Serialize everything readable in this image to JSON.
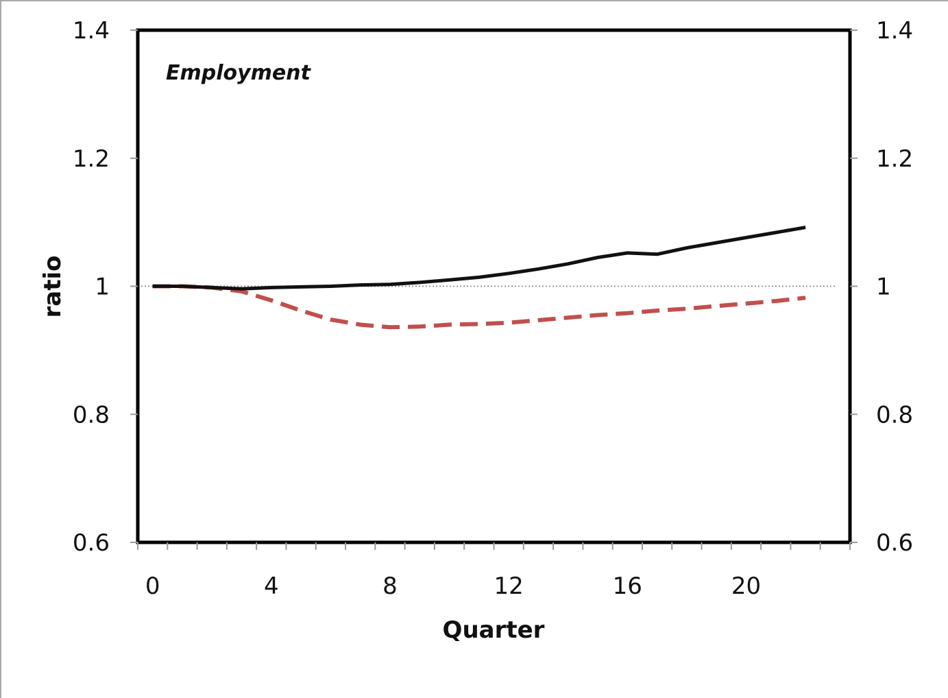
{
  "chart_data": {
    "type": "line",
    "annotation": "Employment",
    "xlabel": "Quarter",
    "ylabel": "ratio",
    "xlim": [
      -0.5,
      23.5
    ],
    "ylim": [
      0.6,
      1.4
    ],
    "x_ticks": [
      0,
      4,
      8,
      12,
      16,
      20
    ],
    "y_ticks": [
      0.6,
      0.8,
      1,
      1.2,
      1.4
    ],
    "y_tick_labels": [
      "0.6",
      "0.8",
      "1",
      "1.2",
      "1.4"
    ],
    "right_axis_tick_labels": [
      "0.6",
      "0.8",
      "1",
      "1.2",
      "1.4"
    ],
    "grid": false,
    "reference_line": {
      "y": 1,
      "style": "dotted",
      "color": "#9a9a9a"
    },
    "x": [
      0,
      1,
      2,
      3,
      4,
      5,
      6,
      7,
      8,
      9,
      10,
      11,
      12,
      13,
      14,
      15,
      16,
      17,
      18,
      19,
      20,
      21,
      22
    ],
    "series": [
      {
        "style": "solid",
        "color": "#111111",
        "values": [
          1.0,
          1.0,
          0.998,
          0.996,
          0.998,
          0.999,
          1.0,
          1.002,
          1.003,
          1.006,
          1.01,
          1.014,
          1.02,
          1.027,
          1.035,
          1.045,
          1.052,
          1.05,
          1.06,
          1.068,
          1.076,
          1.084,
          1.092
        ]
      },
      {
        "style": "dashed",
        "color": "#c0504d",
        "values": [
          1.0,
          1.0,
          0.998,
          0.992,
          0.978,
          0.962,
          0.948,
          0.94,
          0.936,
          0.937,
          0.94,
          0.941,
          0.943,
          0.947,
          0.951,
          0.955,
          0.958,
          0.962,
          0.965,
          0.969,
          0.973,
          0.977,
          0.982
        ]
      }
    ]
  }
}
